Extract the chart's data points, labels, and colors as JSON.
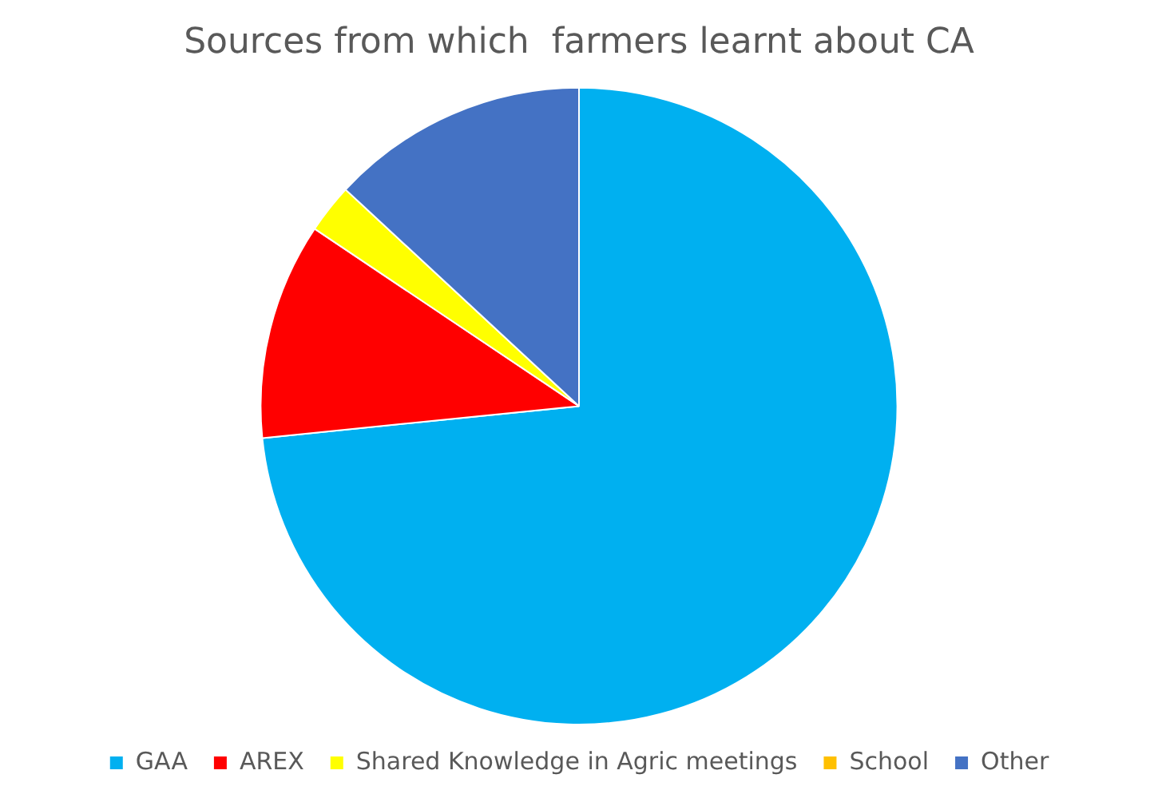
{
  "chart_data": {
    "type": "pie",
    "title": "Sources from which  farmers learnt about CA",
    "categories": [
      "GAA",
      "AREX",
      "Shared Knowledge in Agric meetings",
      "School",
      "Other"
    ],
    "values": [
      73.4,
      11,
      2.5,
      0,
      13.1
    ],
    "colors": [
      "#00b0f0",
      "#ff0000",
      "#ffff00",
      "#ffc000",
      "#4472c4"
    ],
    "legend": "bottom"
  }
}
